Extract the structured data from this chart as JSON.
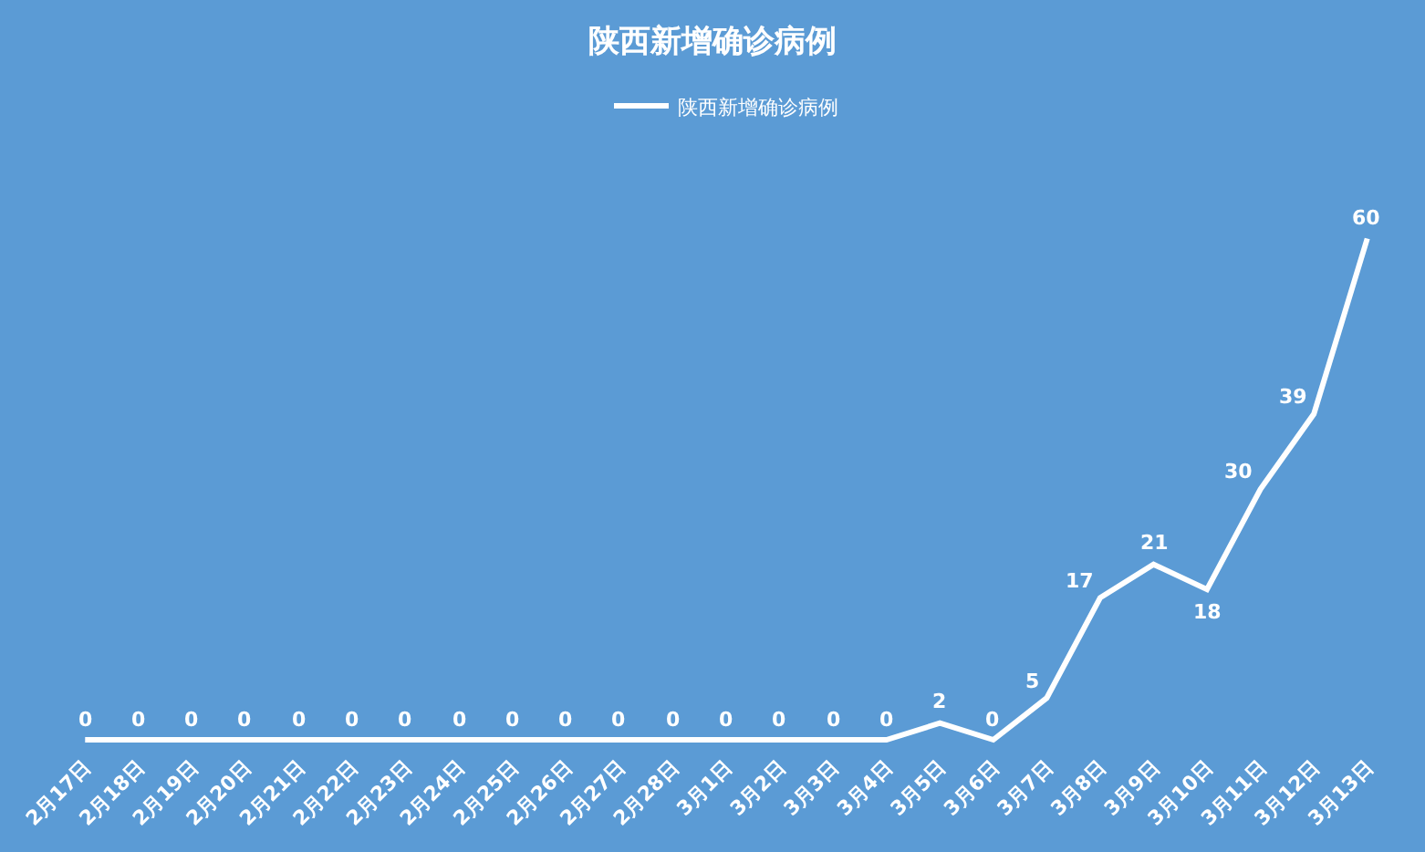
{
  "chart_data": {
    "type": "line",
    "title": "陕西新增确诊病例",
    "categories": [
      "2月17日",
      "2月18日",
      "2月19日",
      "2月20日",
      "2月21日",
      "2月22日",
      "2月23日",
      "2月24日",
      "2月25日",
      "2月26日",
      "2月27日",
      "2月28日",
      "3月1日",
      "3月2日",
      "3月3日",
      "3月4日",
      "3月5日",
      "3月6日",
      "3月7日",
      "3月8日",
      "3月9日",
      "3月10日",
      "3月11日",
      "3月12日",
      "3月13日"
    ],
    "series": [
      {
        "name": "陕西新增确诊病例",
        "color": "#ffffff",
        "values": [
          0,
          0,
          0,
          0,
          0,
          0,
          0,
          0,
          0,
          0,
          0,
          0,
          0,
          0,
          0,
          0,
          2,
          0,
          5,
          17,
          21,
          18,
          30,
          39,
          60
        ]
      }
    ],
    "data_labels": true,
    "legend": "top",
    "grid": false,
    "marker": "none",
    "line_style": "solid"
  }
}
